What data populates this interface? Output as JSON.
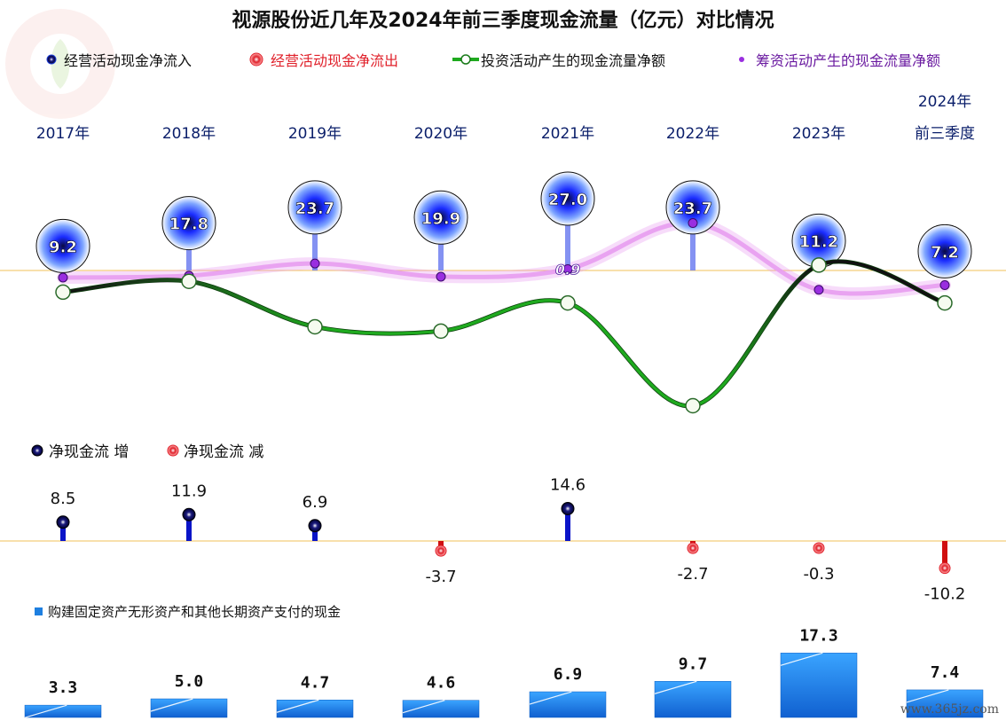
{
  "title": "视源股份近几年及2024年前三季度现金流量（亿元）对比情况",
  "watermark": "www.365jz.com",
  "colors": {
    "inflow": "#1c3cd8",
    "outflow": "#e0202a",
    "investing": "#1faa1f",
    "financing": "#e79cf0",
    "financing_dot": "#9a2ee0",
    "capex": "#1e7fe0",
    "baseline": "#f2c25a"
  },
  "chart_data": [
    {
      "type": "line",
      "title": "视源股份近几年及2024年前三季度现金流量（亿元）对比情况",
      "categories": [
        "2017年",
        "2018年",
        "2019年",
        "2020年",
        "2021年",
        "2022年",
        "2023年",
        "2024年前三季度"
      ],
      "category_labels": [
        [
          "2017年"
        ],
        [
          "2018年"
        ],
        [
          "2019年"
        ],
        [
          "2020年"
        ],
        [
          "2021年"
        ],
        [
          "2022年"
        ],
        [
          "2023年"
        ],
        [
          "2024年",
          "前三季度"
        ]
      ],
      "series": [
        {
          "name": "经营活动现金净流入",
          "values": [
            9.2,
            17.8,
            23.7,
            19.9,
            27.0,
            23.7,
            11.2,
            7.2
          ]
        },
        {
          "name": "经营活动现金净流出",
          "values": [
            null,
            null,
            null,
            null,
            null,
            null,
            null,
            null
          ]
        },
        {
          "name": "投资活动产生的现金流量净额",
          "values": [
            -2.0,
            -1.0,
            -5.2,
            -5.6,
            -3.0,
            -12.5,
            0.5,
            -3.0
          ]
        },
        {
          "name": "筹资活动产生的现金流量净额",
          "values": [
            0.0,
            0.2,
            1.5,
            0.1,
            0.9,
            5.8,
            -1.3,
            -0.8
          ]
        }
      ],
      "data_labels": {
        "inflow": [
          "9.2",
          "17.8",
          "23.7",
          "19.9",
          "27.0",
          "23.7",
          "11.2",
          "7.2"
        ],
        "financing_2021": "0.9"
      },
      "legend": "top",
      "grid": false
    },
    {
      "type": "bar",
      "categories": [
        "2017年",
        "2018年",
        "2019年",
        "2020年",
        "2021年",
        "2022年",
        "2023年",
        "2024年前三季度"
      ],
      "series": [
        {
          "name": "净现金流 增",
          "values": [
            8.5,
            11.9,
            6.9,
            null,
            14.6,
            null,
            null,
            null
          ]
        },
        {
          "name": "净现金流 减",
          "values": [
            null,
            null,
            null,
            -3.7,
            null,
            -2.7,
            -0.3,
            -10.2
          ]
        }
      ],
      "labels": [
        "8.5",
        "11.9",
        "6.9",
        "-3.7",
        "14.6",
        "-2.7",
        "-0.3",
        "-10.2"
      ],
      "legend": "top-left"
    },
    {
      "type": "bar",
      "categories": [
        "2017年",
        "2018年",
        "2019年",
        "2020年",
        "2021年",
        "2022年",
        "2023年",
        "2024年前三季度"
      ],
      "series": [
        {
          "name": "购建固定资产无形资产和其他长期资产支付的现金",
          "values": [
            3.3,
            5.0,
            4.7,
            4.6,
            6.9,
            9.7,
            17.3,
            7.4
          ]
        }
      ],
      "labels": [
        "3.3",
        "5.0",
        "4.7",
        "4.6",
        "6.9",
        "9.7",
        "17.3",
        "7.4"
      ],
      "legend": "top-left"
    }
  ]
}
